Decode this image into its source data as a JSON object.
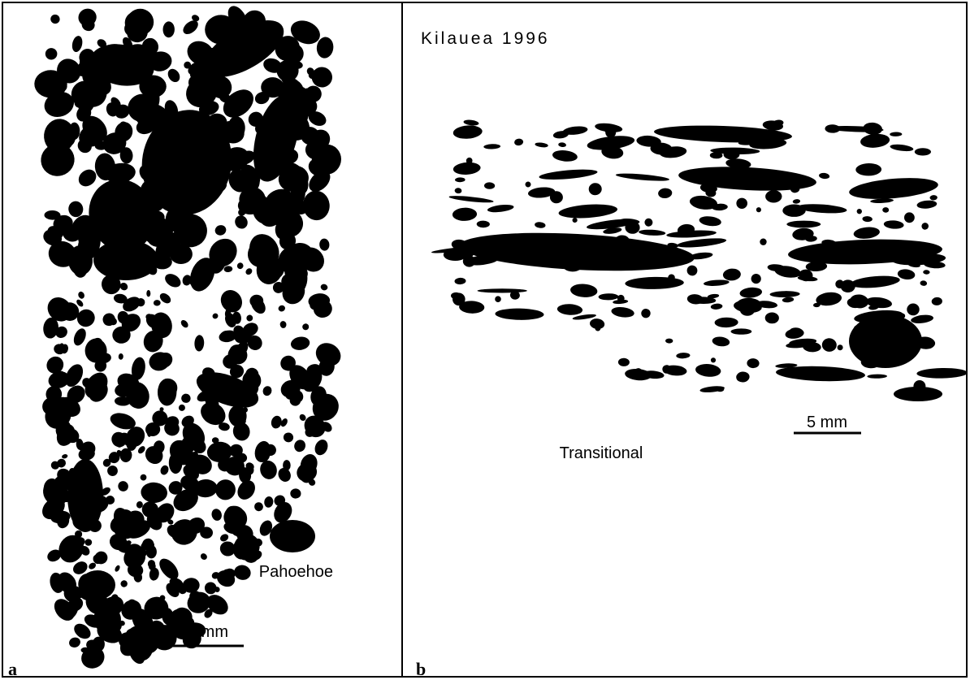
{
  "panels": [
    {
      "label": "a",
      "caption": "Pahoehoe",
      "scale": "5 mm"
    },
    {
      "label": "b",
      "title": "Kilauea 1996",
      "caption": "Transitional",
      "scale": "5 mm"
    }
  ]
}
